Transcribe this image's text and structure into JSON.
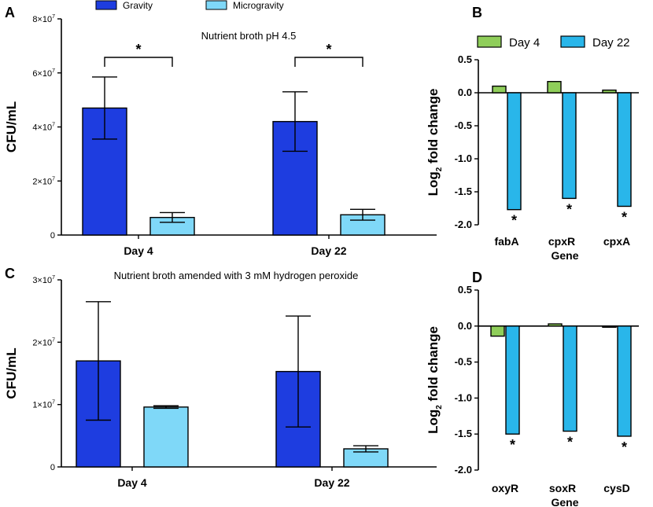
{
  "colors": {
    "gravity": "#1e3de0",
    "microgravity": "#7fd8f8",
    "day4": "#8fce5a",
    "day22": "#29b6ea"
  },
  "chart_data": [
    {
      "panel": "A",
      "type": "bar",
      "title": "Nutrient broth pH 4.5",
      "ylabel": "CFU/mL",
      "ylim": [
        0,
        80000000
      ],
      "yticks": [
        {
          "value": 0,
          "label": "0"
        },
        {
          "value": 20000000,
          "label": "2×10",
          "exp": "7"
        },
        {
          "value": 40000000,
          "label": "4×10",
          "exp": "7"
        },
        {
          "value": 60000000,
          "label": "6×10",
          "exp": "7"
        },
        {
          "value": 80000000,
          "label": "8×10",
          "exp": "7"
        }
      ],
      "categories": [
        "Day 4",
        "Day 22"
      ],
      "legend": [
        "Gravity",
        "Microgravity"
      ],
      "series": [
        {
          "name": "Gravity",
          "values": [
            47000000,
            42000000
          ],
          "errors": [
            11500000,
            11000000
          ]
        },
        {
          "name": "Microgravity",
          "values": [
            6500000,
            7500000
          ],
          "errors": [
            1800000,
            2000000
          ]
        }
      ],
      "significance": [
        "*",
        "*"
      ]
    },
    {
      "panel": "B",
      "type": "bar",
      "ylabel": "Log",
      "ylabel_sub": "2",
      "ylabel_rest": " fold change",
      "xlabel": "Gene",
      "ylim": [
        -2.0,
        0.5
      ],
      "yticks": [
        "0.5",
        "0.0",
        "-0.5",
        "-1.0",
        "-1.5",
        "-2.0"
      ],
      "categories": [
        "fabA",
        "cpxR",
        "cpxA"
      ],
      "legend": [
        "Day 4",
        "Day 22"
      ],
      "series": [
        {
          "name": "Day 4",
          "values": [
            0.1,
            0.17,
            0.04
          ]
        },
        {
          "name": "Day 22",
          "values": [
            -1.77,
            -1.6,
            -1.72
          ]
        }
      ],
      "significance": [
        "*",
        "*",
        "*"
      ]
    },
    {
      "panel": "C",
      "type": "bar",
      "title": "Nutrient broth amended with 3 mM hydrogen peroxide",
      "ylabel": "CFU/mL",
      "ylim": [
        0,
        30000000
      ],
      "yticks": [
        {
          "value": 0,
          "label": "0"
        },
        {
          "value": 10000000,
          "label": "1×10",
          "exp": "7"
        },
        {
          "value": 20000000,
          "label": "2×10",
          "exp": "7"
        },
        {
          "value": 30000000,
          "label": "3×10",
          "exp": "7"
        }
      ],
      "categories": [
        "Day 4",
        "Day 22"
      ],
      "series": [
        {
          "name": "Gravity",
          "values": [
            17000000,
            15300000
          ],
          "errors": [
            9500000,
            8900000
          ]
        },
        {
          "name": "Microgravity",
          "values": [
            9600000,
            2900000
          ],
          "errors": [
            200000,
            500000
          ]
        }
      ]
    },
    {
      "panel": "D",
      "type": "bar",
      "ylabel": "Log",
      "ylabel_sub": "2",
      "ylabel_rest": " fold change",
      "xlabel": "Gene",
      "ylim": [
        -2.0,
        0.5
      ],
      "yticks": [
        "0.5",
        "0.0",
        "-0.5",
        "-1.0",
        "-1.5",
        "-2.0"
      ],
      "categories": [
        "oxyR",
        "soxR",
        "cysD"
      ],
      "series": [
        {
          "name": "Day 4",
          "values": [
            -0.14,
            0.03,
            -0.01
          ]
        },
        {
          "name": "Day 22",
          "values": [
            -1.5,
            -1.46,
            -1.53
          ]
        }
      ],
      "significance": [
        "*",
        "*",
        "*"
      ]
    }
  ]
}
